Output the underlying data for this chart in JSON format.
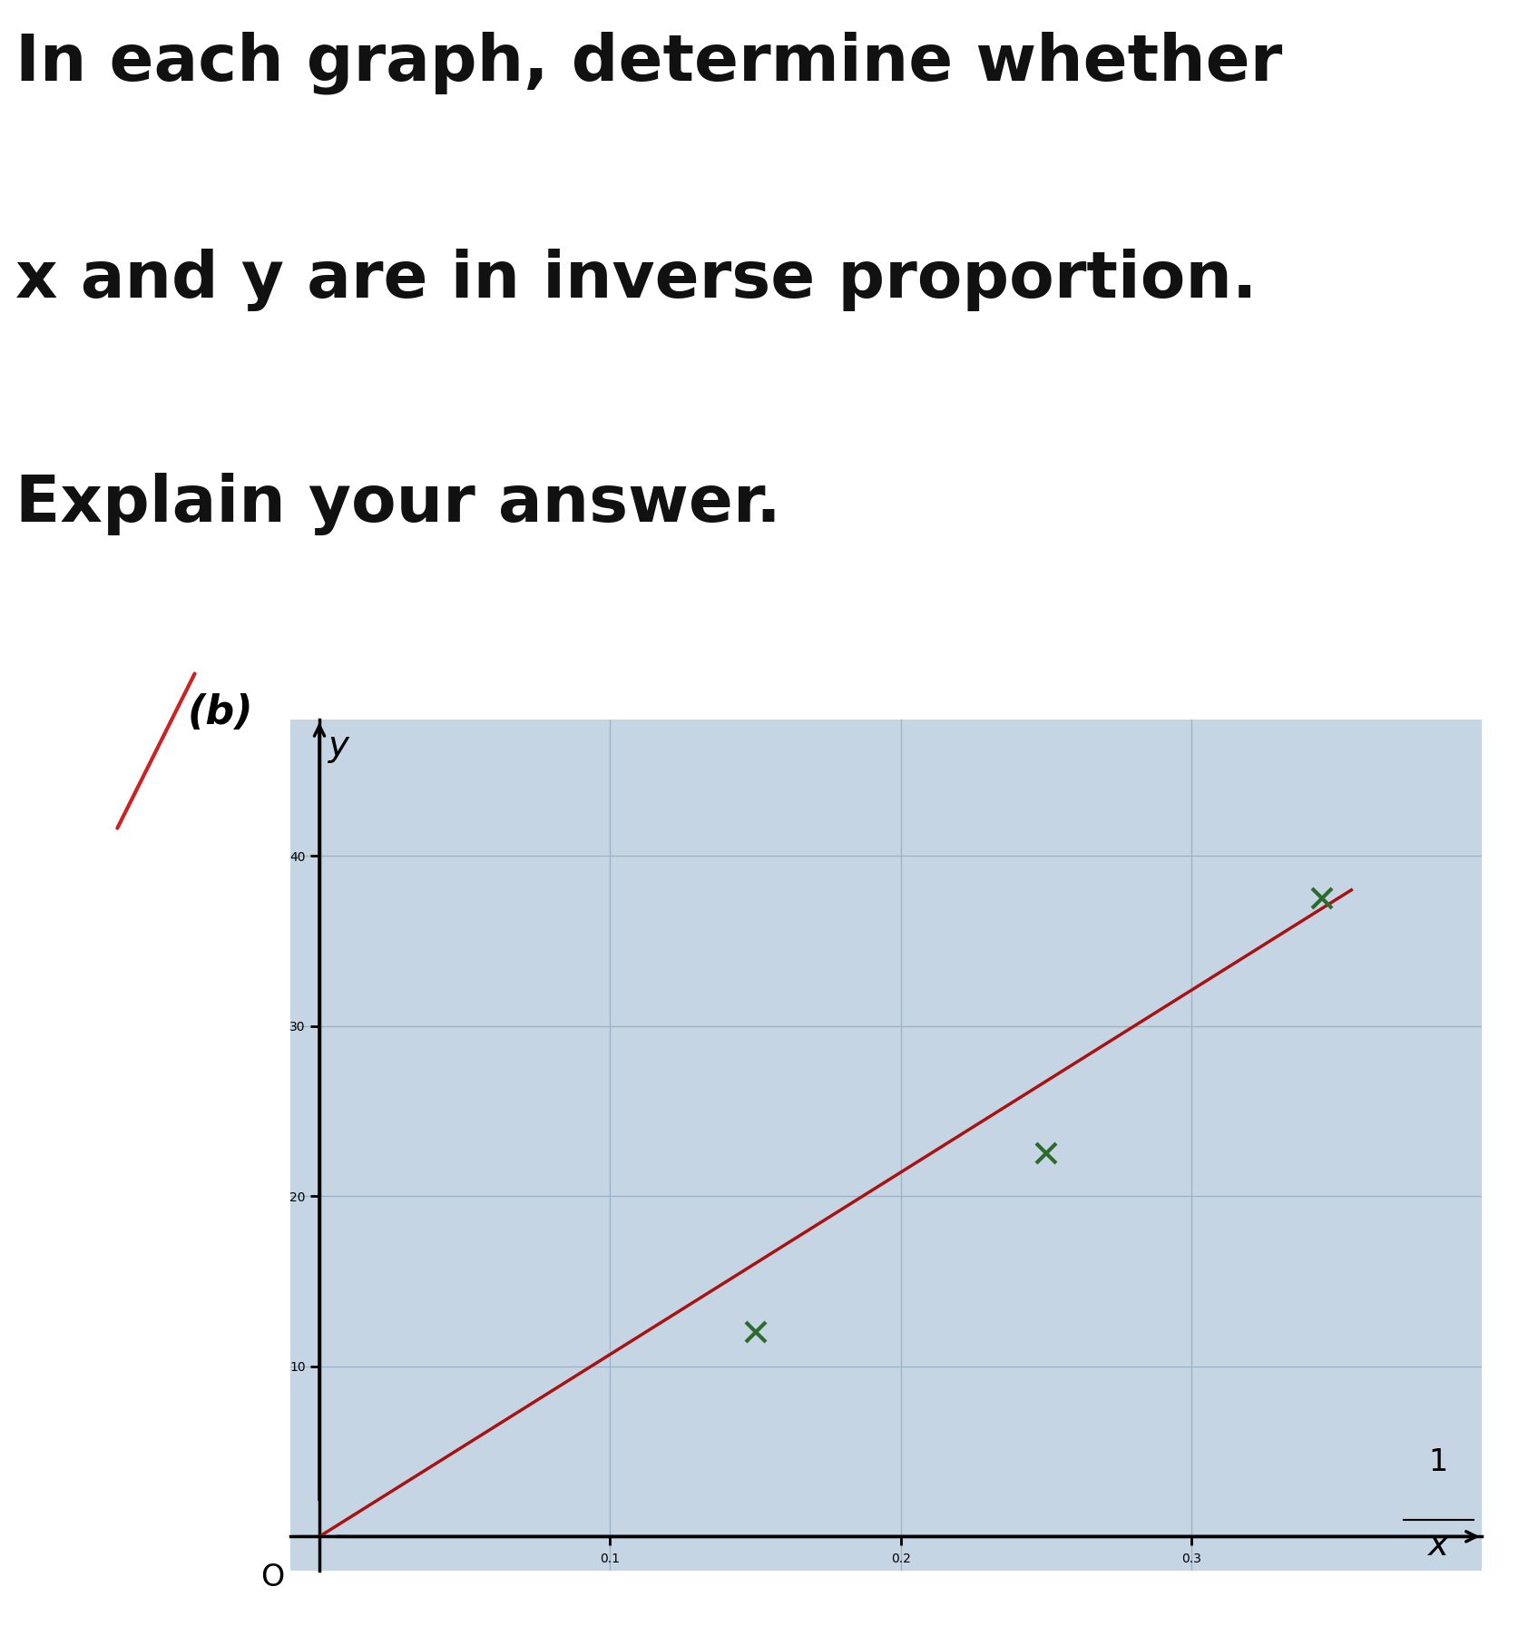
{
  "title_line1": "In each graph, determine whether",
  "title_line2": "x and y are in inverse proportion.",
  "title_line3": "Explain your answer.",
  "label_b": "(b)",
  "xlabel": "x",
  "ylabel": "y",
  "x_ticks": [
    0.1,
    0.2,
    0.3
  ],
  "y_ticks": [
    10,
    20,
    30,
    40
  ],
  "xlim": [
    -0.01,
    0.4
  ],
  "ylim": [
    -2,
    48
  ],
  "line_color": "#aa1111",
  "line_x": [
    0.0,
    0.355
  ],
  "line_y": [
    0.0,
    38.0
  ],
  "marker_points_x": [
    0.15,
    0.25,
    0.345
  ],
  "marker_points_y": [
    12.0,
    22.5,
    37.5
  ],
  "marker_color": "#2d6a2d",
  "plot_bg_color": "#c5d5e4",
  "grid_color": "#9bb0c4",
  "outer_bg_color": "#c8c8c8",
  "text_color": "#111111",
  "title_fontsize": 52,
  "axis_label_fontsize": 28,
  "tick_fontsize": 24,
  "label_b_fontsize": 32,
  "frac_top": "1",
  "frac_bottom": "x"
}
